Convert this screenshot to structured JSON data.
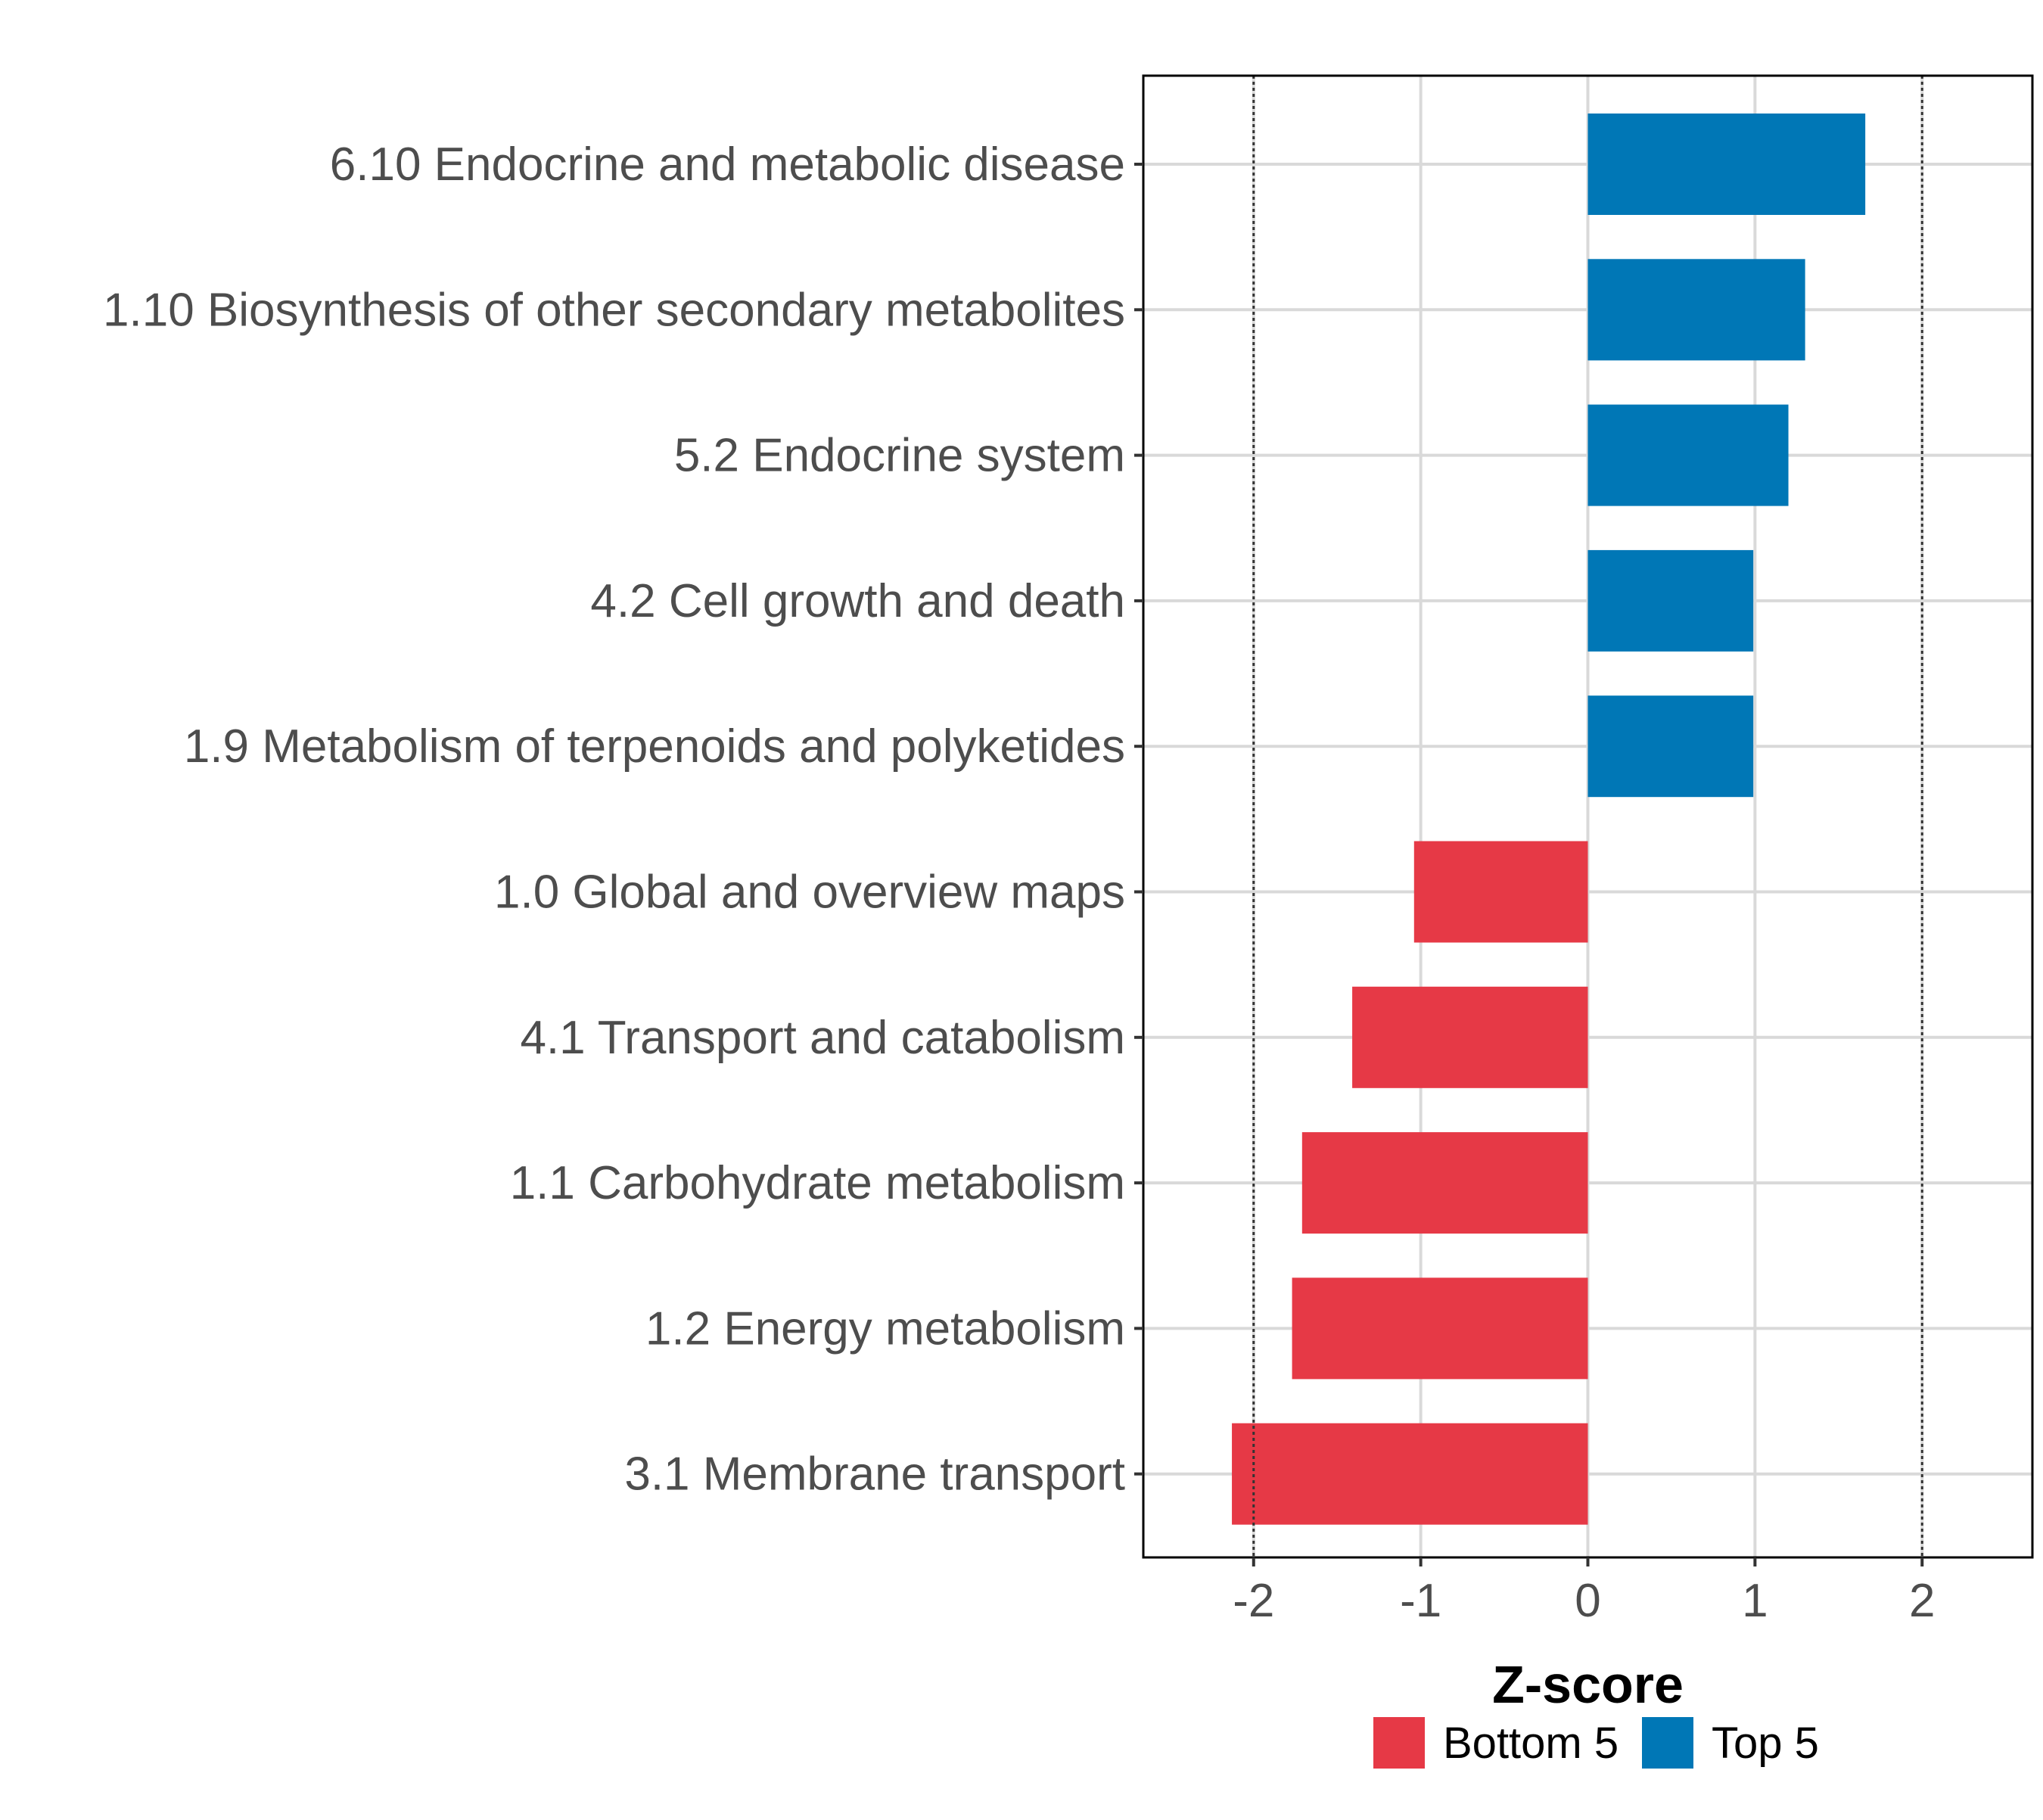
{
  "chart_data": {
    "type": "bar",
    "orientation": "horizontal",
    "xlabel": "Z-score",
    "ylabel": "",
    "xlim": [
      -2.66,
      2.66
    ],
    "xticks": [
      -2,
      -1,
      0,
      1,
      2
    ],
    "xtick_labels": [
      "-2",
      "-1",
      "0",
      "1",
      "2"
    ],
    "reference_lines": [
      -2,
      2
    ],
    "grid": true,
    "legend_position": "bottom",
    "categories": [
      "6.10 Endocrine and metabolic disease",
      "1.10 Biosynthesis of other secondary metabolites",
      "5.2 Endocrine system",
      "4.2 Cell growth and death",
      "1.9 Metabolism of terpenoids and polyketides",
      "1.0 Global and overview maps",
      "4.1 Transport and catabolism",
      "1.1 Carbohydrate metabolism",
      "1.2 Energy metabolism",
      "3.1 Membrane transport"
    ],
    "values": [
      1.66,
      1.3,
      1.2,
      0.99,
      0.99,
      -1.04,
      -1.41,
      -1.71,
      -1.77,
      -2.13
    ],
    "groups": [
      "Top 5",
      "Top 5",
      "Top 5",
      "Top 5",
      "Top 5",
      "Bottom 5",
      "Bottom 5",
      "Bottom 5",
      "Bottom 5",
      "Bottom 5"
    ],
    "legend": [
      {
        "name": "Bottom 5",
        "color": "#e63946"
      },
      {
        "name": "Top 5",
        "color": "#0077b6"
      }
    ]
  },
  "colors": {
    "Top 5": "#0077b6",
    "Bottom 5": "#e63946",
    "grid": "#d9d9d9",
    "panel_border": "#000000",
    "reference_line": "#333333"
  }
}
